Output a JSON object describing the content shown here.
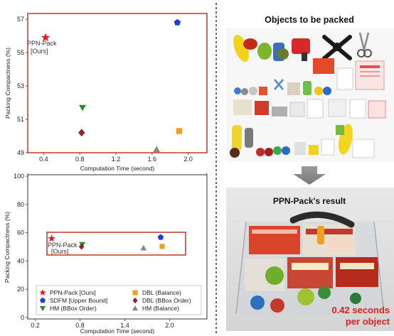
{
  "colors": {
    "accent_red": "#c0392b",
    "star": "#e02020",
    "sdfm": "#1f3fd6",
    "hm_bbox": "#2a8a2a",
    "dbl_balance": "#f0a020",
    "dbl_bbox": "#8b2a2a",
    "hm_balance": "#888888",
    "result_text": "#d8241c"
  },
  "chart_data": [
    {
      "type": "scatter",
      "title": "",
      "xlabel": "Computation Time (second)",
      "ylabel": "Packing Compactness (%)",
      "xlim": [
        0.2,
        2.2
      ],
      "ylim": [
        49,
        57
      ],
      "xticks": [
        "0.4",
        "0.8",
        "1.2",
        "1.6",
        "2.0"
      ],
      "yticks": [
        "49",
        "51",
        "53",
        "55",
        "57"
      ],
      "annotation": [
        "PPN-Pack",
        "[Ours]"
      ],
      "series": [
        {
          "name": "PPN-Pack [Ours]",
          "marker": "star",
          "color": "#e02020",
          "x": 0.42,
          "y": 55.9
        },
        {
          "name": "SDFM [Upper Bound]",
          "marker": "pentagon",
          "color": "#1f3fd6",
          "x": 1.88,
          "y": 56.8
        },
        {
          "name": "HM (BBox Order)",
          "marker": "triangle-down",
          "color": "#2a8a2a",
          "x": 0.83,
          "y": 51.7
        },
        {
          "name": "DBL (Balance)",
          "marker": "square",
          "color": "#f0a020",
          "x": 1.9,
          "y": 50.3
        },
        {
          "name": "DBL (BBox Order)",
          "marker": "diamond",
          "color": "#8b2a2a",
          "x": 0.82,
          "y": 50.2
        },
        {
          "name": "HM (Balance)",
          "marker": "triangle-up",
          "color": "#888888",
          "x": 1.65,
          "y": 49.2
        }
      ]
    },
    {
      "type": "scatter",
      "title": "",
      "xlabel": "Computation Time (second)",
      "ylabel": "Packing Compactness (%)",
      "xlim": [
        0.1,
        2.5
      ],
      "ylim": [
        0,
        100
      ],
      "xticks": [
        "0.2",
        "0.8",
        "1.4",
        "2.0"
      ],
      "yticks": [
        "0",
        "20",
        "40",
        "60",
        "80",
        "100"
      ],
      "annotation": [
        "PPN-Pack",
        "[Ours]"
      ],
      "legend_placement": "bottom",
      "series": [
        {
          "name": "PPN-Pack [Ours]",
          "marker": "star",
          "color": "#e02020",
          "x": 0.42,
          "y": 55.9
        },
        {
          "name": "SDFM [Upper Bound]",
          "marker": "pentagon",
          "color": "#1f3fd6",
          "x": 1.88,
          "y": 56.8
        },
        {
          "name": "HM (BBox Order)",
          "marker": "triangle-down",
          "color": "#2a8a2a",
          "x": 0.83,
          "y": 51.7
        },
        {
          "name": "DBL (Balance)",
          "marker": "square",
          "color": "#f0a020",
          "x": 1.9,
          "y": 50.3
        },
        {
          "name": "DBL (BBox Order)",
          "marker": "diamond",
          "color": "#8b2a2a",
          "x": 0.82,
          "y": 50.2
        },
        {
          "name": "HM (Balance)",
          "marker": "triangle-up",
          "color": "#888888",
          "x": 1.65,
          "y": 49.2
        }
      ]
    }
  ],
  "right_panel": {
    "objects_title": "Objects to be packed",
    "result_title": "PPN-Pack's result",
    "time_value": "0.42 seconds",
    "time_unit": "per object"
  }
}
